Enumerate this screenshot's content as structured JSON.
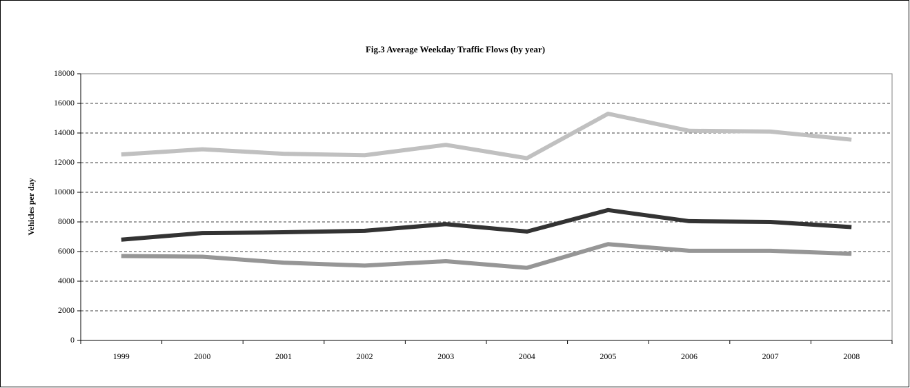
{
  "chart_data": {
    "type": "line",
    "title": "Fig.3  Average Weekday Traffic Flows (by year)",
    "y_label": "Vehicles per day",
    "categories": [
      "1999",
      "2000",
      "2001",
      "2002",
      "2003",
      "2004",
      "2005",
      "2006",
      "2007",
      "2008"
    ],
    "series": [
      {
        "color": "#c0c0c0",
        "values": [
          12550,
          12900,
          12600,
          12500,
          13200,
          12300,
          15300,
          14150,
          14100,
          13550
        ]
      },
      {
        "color": "#333333",
        "values": [
          6800,
          7250,
          7300,
          7400,
          7850,
          7350,
          8800,
          8050,
          8000,
          7650
        ]
      },
      {
        "color": "#969696",
        "values": [
          5700,
          5650,
          5250,
          5050,
          5350,
          4900,
          6500,
          6050,
          6050,
          5850
        ]
      }
    ],
    "ylim": [
      0,
      18000
    ],
    "yticks": [
      0,
      2000,
      4000,
      6000,
      8000,
      10000,
      12000,
      14000,
      16000,
      18000
    ],
    "grid": true
  }
}
